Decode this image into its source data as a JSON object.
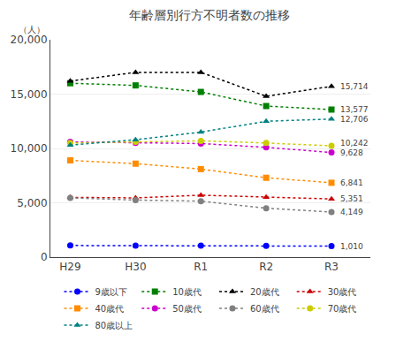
{
  "chart_data": {
    "type": "line",
    "title": "年齢層別行方不明者数の推移",
    "ylabel": "（人）",
    "categories": [
      "H29",
      "H30",
      "R1",
      "R2",
      "R3"
    ],
    "ylim": [
      0,
      20000
    ],
    "yticks": [
      0,
      {
        "value": 5000,
        "label": "5,000"
      },
      {
        "value": 10000,
        "label": "10,000"
      },
      {
        "value": 15000,
        "label": "15,000"
      },
      {
        "value": 20000,
        "label": "20,000"
      }
    ],
    "grid": true,
    "legend": "bottom",
    "series": [
      {
        "name": "9歳以下",
        "color": "#0000FF",
        "marker": "circle",
        "line_style": "dot",
        "values": [
          1070,
          1060,
          1050,
          1030,
          1010
        ]
      },
      {
        "name": "10歳代",
        "color": "#008000",
        "marker": "square",
        "line_style": "dot",
        "values": [
          16000,
          15800,
          15200,
          13900,
          13577
        ]
      },
      {
        "name": "20歳代",
        "color": "#000000",
        "marker": "triangle-up",
        "line_style": "dot",
        "values": [
          16200,
          17000,
          17000,
          14800,
          15714
        ]
      },
      {
        "name": "30歳代",
        "color": "#CC0000",
        "marker": "triangle-up",
        "line_style": "dot",
        "values": [
          5500,
          5450,
          5700,
          5500,
          5351
        ]
      },
      {
        "name": "40歳代",
        "color": "#FF8C00",
        "marker": "square",
        "line_style": "dot",
        "values": [
          8900,
          8600,
          8100,
          7300,
          6841
        ]
      },
      {
        "name": "50歳代",
        "color": "#CC00CC",
        "marker": "circle",
        "line_style": "dot",
        "values": [
          10600,
          10500,
          10450,
          10100,
          9628
        ]
      },
      {
        "name": "60歳代",
        "color": "#808080",
        "marker": "circle",
        "line_style": "dot",
        "values": [
          5450,
          5250,
          5150,
          4500,
          4149
        ]
      },
      {
        "name": "70歳代",
        "color": "#CCCC00",
        "marker": "circle",
        "line_style": "dot",
        "values": [
          10500,
          10600,
          10700,
          10500,
          10242
        ]
      },
      {
        "name": "80歳以上",
        "color": "#008080",
        "marker": "triangle-up",
        "line_style": "dot",
        "values": [
          10300,
          10800,
          11500,
          12500,
          12706
        ]
      }
    ],
    "annotations": [
      {
        "text": "15,714",
        "series": "20歳代"
      },
      {
        "text": "13,577",
        "series": "10歳代"
      },
      {
        "text": "12,706",
        "series": "80歳以上"
      },
      {
        "text": "10,242",
        "series": "70歳代"
      },
      {
        "text": "9,628",
        "series": "50歳代"
      },
      {
        "text": "6,841",
        "series": "40歳代"
      },
      {
        "text": "5,351",
        "series": "30歳代"
      },
      {
        "text": "4,149",
        "series": "60歳代"
      },
      {
        "text": "1,010",
        "series": "9歳以下"
      }
    ]
  }
}
